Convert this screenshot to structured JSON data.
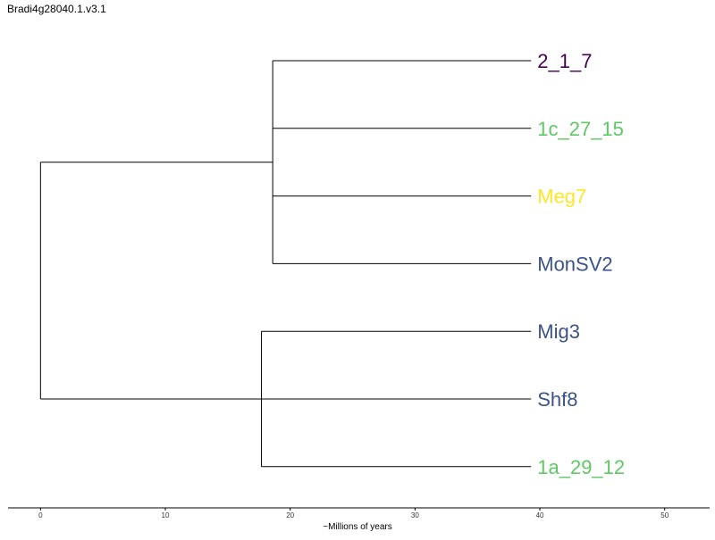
{
  "chart_data": {
    "type": "dendrogram",
    "title": "Bradi4g28040.1.v3.1",
    "xlabel": "~Millions of years",
    "xlim": [
      -2.6,
      53.6
    ],
    "xticks": [
      0,
      10,
      20,
      30,
      40,
      50
    ],
    "xtick_labels": [
      "0",
      "10",
      "20",
      "30",
      "40",
      "50"
    ],
    "leaves": [
      {
        "name": "2_1_7",
        "color": "#440154"
      },
      {
        "name": "1c_27_15",
        "color": "#5ec962"
      },
      {
        "name": "Meg7",
        "color": "#fde725"
      },
      {
        "name": "MonSV2",
        "color": "#3b528b"
      },
      {
        "name": "Mig3",
        "color": "#3b528b"
      },
      {
        "name": "Shf8",
        "color": "#3b528b"
      },
      {
        "name": "1a_29_12",
        "color": "#5ec962"
      }
    ],
    "leaf_age": 39.3,
    "clades": [
      {
        "height": 18.6,
        "children": [
          0,
          1,
          2,
          3
        ]
      },
      {
        "height": 17.7,
        "children": [
          4,
          5,
          6
        ]
      },
      {
        "height": 0.0,
        "children": [
          "clade0",
          "clade1"
        ]
      }
    ],
    "branch_color": "#000000",
    "axis_color": "#000000"
  }
}
